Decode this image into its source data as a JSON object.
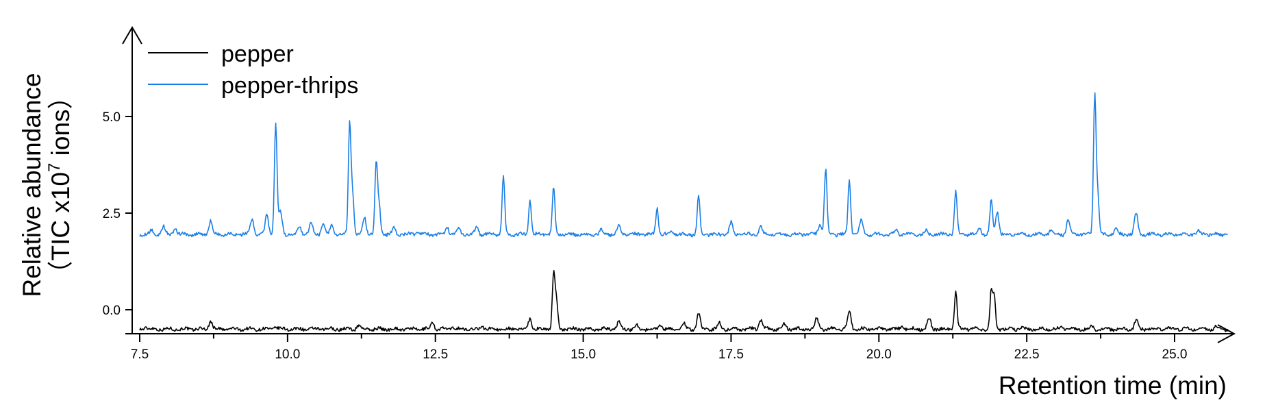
{
  "chart_data": {
    "type": "line",
    "xlabel": "Retention time (min)",
    "ylabel": "Relative abundance",
    "ylabel_line2_prefix": "（TIC x10",
    "ylabel_line2_exponent": "7",
    "ylabel_line2_suffix": " ions）",
    "xlim": [
      7.5,
      26.0
    ],
    "ylim": [
      -0.6,
      7.3
    ],
    "x_ticks": [
      7.5,
      10.0,
      12.5,
      15.0,
      17.5,
      20.0,
      22.5,
      25.0
    ],
    "x_tick_labels": [
      "7.5",
      "10.0",
      "12.5",
      "15.0",
      "17.5",
      "20.0",
      "22.5",
      "25.0"
    ],
    "y_ticks": [
      0.0,
      2.5,
      5.0
    ],
    "y_tick_labels": [
      "0.0",
      "2.5",
      "5.0"
    ],
    "x_range": [
      7.5,
      25.9
    ],
    "legend_position": "top-left",
    "grid": false,
    "series": [
      {
        "name": "pepper",
        "color": "#000000",
        "baseline": -0.5,
        "peaks": [
          [
            7.6,
            0.05
          ],
          [
            8.7,
            0.22
          ],
          [
            9.8,
            0.06
          ],
          [
            11.2,
            0.1
          ],
          [
            12.45,
            0.18
          ],
          [
            12.8,
            0.05
          ],
          [
            13.3,
            0.07
          ],
          [
            14.1,
            0.28
          ],
          [
            14.5,
            1.48
          ],
          [
            14.55,
            0.7
          ],
          [
            15.6,
            0.2
          ],
          [
            15.9,
            0.1
          ],
          [
            16.3,
            0.12
          ],
          [
            16.7,
            0.15
          ],
          [
            16.95,
            0.4
          ],
          [
            17.3,
            0.15
          ],
          [
            18.0,
            0.25
          ],
          [
            18.4,
            0.12
          ],
          [
            18.95,
            0.28
          ],
          [
            19.5,
            0.48
          ],
          [
            20.4,
            0.07
          ],
          [
            20.85,
            0.28
          ],
          [
            21.3,
            1.0
          ],
          [
            21.9,
            0.98
          ],
          [
            21.95,
            0.8
          ],
          [
            22.4,
            0.05
          ],
          [
            23.1,
            0.05
          ],
          [
            23.6,
            0.07
          ],
          [
            24.35,
            0.23
          ],
          [
            25.7,
            0.08
          ]
        ]
      },
      {
        "name": "pepper-thrips",
        "color": "#1a7ee6",
        "baseline": 1.95,
        "peaks": [
          [
            7.7,
            0.1
          ],
          [
            7.9,
            0.2
          ],
          [
            8.1,
            0.15
          ],
          [
            8.7,
            0.35
          ],
          [
            9.4,
            0.4
          ],
          [
            9.65,
            0.5
          ],
          [
            9.8,
            2.9
          ],
          [
            9.88,
            0.6
          ],
          [
            10.2,
            0.22
          ],
          [
            10.4,
            0.3
          ],
          [
            10.6,
            0.25
          ],
          [
            10.75,
            0.25
          ],
          [
            11.05,
            2.9
          ],
          [
            11.1,
            1.0
          ],
          [
            11.3,
            0.45
          ],
          [
            11.5,
            1.9
          ],
          [
            11.55,
            0.7
          ],
          [
            11.8,
            0.15
          ],
          [
            12.2,
            0.1
          ],
          [
            12.7,
            0.2
          ],
          [
            12.9,
            0.15
          ],
          [
            13.2,
            0.2
          ],
          [
            13.65,
            1.5
          ],
          [
            14.1,
            0.9
          ],
          [
            14.5,
            1.2
          ],
          [
            15.3,
            0.1
          ],
          [
            15.6,
            0.2
          ],
          [
            16.25,
            0.7
          ],
          [
            16.5,
            0.1
          ],
          [
            16.95,
            1.0
          ],
          [
            17.5,
            0.3
          ],
          [
            18.0,
            0.2
          ],
          [
            19.0,
            0.25
          ],
          [
            19.1,
            1.7
          ],
          [
            19.5,
            1.4
          ],
          [
            19.7,
            0.35
          ],
          [
            20.3,
            0.1
          ],
          [
            20.8,
            0.1
          ],
          [
            21.3,
            1.1
          ],
          [
            21.7,
            0.2
          ],
          [
            21.9,
            0.9
          ],
          [
            22.0,
            0.6
          ],
          [
            22.9,
            0.1
          ],
          [
            23.2,
            0.4
          ],
          [
            23.65,
            3.6
          ],
          [
            23.7,
            1.0
          ],
          [
            24.0,
            0.15
          ],
          [
            24.35,
            0.55
          ],
          [
            25.4,
            0.08
          ]
        ]
      }
    ]
  }
}
